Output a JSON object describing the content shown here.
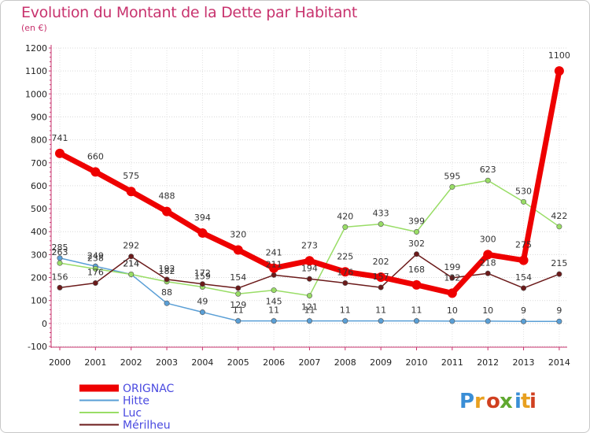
{
  "header": {
    "title": "Evolution du Montant de la Dette par Habitant",
    "subtitle": "(en €)"
  },
  "logo": {
    "text": "Proxiti",
    "letter_colors": [
      "#3a8ed6",
      "#e8a020",
      "#d04020",
      "#60a830",
      "#3a8ed6",
      "#e8a020",
      "#d04020"
    ]
  },
  "chart_data": {
    "type": "line",
    "title": "Evolution du Montant de la Dette par Habitant",
    "subtitle": "(en €)",
    "xlabel": "",
    "ylabel": "",
    "x": [
      "2000",
      "2001",
      "2002",
      "2003",
      "2004",
      "2005",
      "2006",
      "2007",
      "2008",
      "2009",
      "2010",
      "2011",
      "2012",
      "2013",
      "2014"
    ],
    "ylim": [
      -100,
      1200
    ],
    "yticks": [
      -100,
      0,
      100,
      200,
      300,
      400,
      500,
      600,
      700,
      800,
      900,
      1000,
      1100,
      1200
    ],
    "grid": true,
    "legend": "bottom-left",
    "series": [
      {
        "name": "ORIGNAC",
        "color": "#ee0000",
        "values": [
          741,
          660,
          575,
          488,
          394,
          320,
          241,
          273,
          225,
          202,
          168,
          132,
          300,
          275,
          1100
        ],
        "labels": [
          "741",
          "660",
          "575",
          "488",
          "394",
          "320",
          "241",
          "273",
          "225",
          "202",
          "168",
          "132",
          "300",
          "275",
          "1100"
        ]
      },
      {
        "name": "Hitte",
        "color": "#5a9fd6",
        "values": [
          285,
          249,
          214,
          88,
          49,
          11,
          11,
          11,
          11,
          11,
          11,
          10,
          10,
          9,
          9
        ],
        "labels": [
          "285",
          "249",
          "214",
          "88",
          "49",
          "11",
          "11",
          "11",
          "11",
          "11",
          "11",
          "10",
          "10",
          "9",
          "9"
        ]
      },
      {
        "name": "Luc",
        "color": "#99dd66",
        "values": [
          263,
          238,
          214,
          182,
          159,
          129,
          145,
          121,
          420,
          433,
          399,
          595,
          623,
          530,
          422
        ],
        "labels": [
          "263",
          "238",
          "214",
          "182",
          "159",
          "129",
          "145",
          "121",
          "420",
          "433",
          "399",
          "595",
          "623",
          "530",
          "422"
        ]
      },
      {
        "name": "Mérilheu",
        "color": "#6b1a1a",
        "values": [
          156,
          176,
          292,
          192,
          172,
          154,
          211,
          194,
          176,
          157,
          302,
          199,
          218,
          154,
          215
        ],
        "labels": [
          "156",
          "176",
          "292",
          "192",
          "172",
          "154",
          "211",
          "194",
          "176",
          "157",
          "302",
          "199",
          "218",
          "154",
          "215"
        ]
      }
    ]
  }
}
